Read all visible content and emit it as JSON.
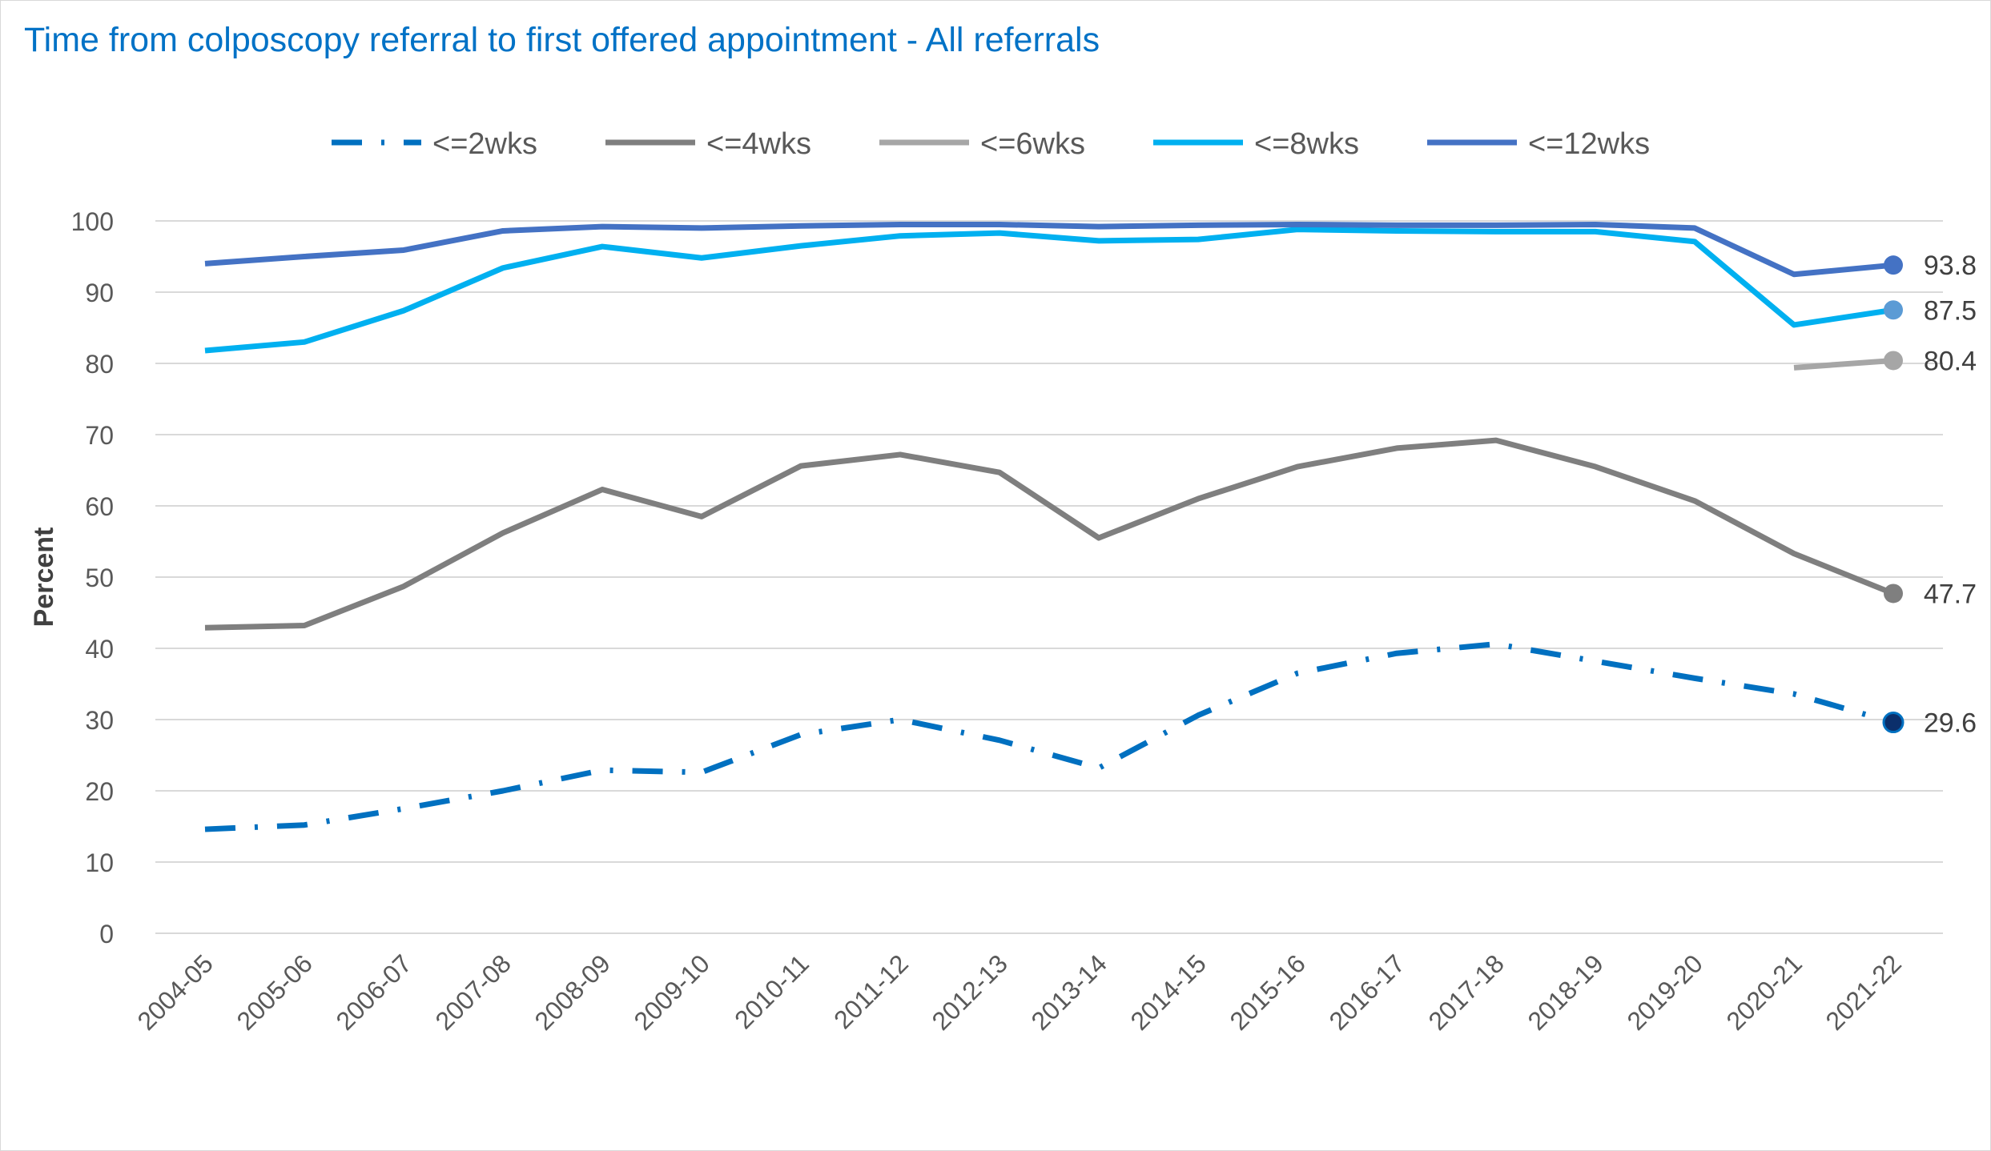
{
  "chart_data": {
    "type": "line",
    "title": "Time from colposcopy referral to first offered appointment - All referrals",
    "xlabel": "",
    "ylabel": "Percent",
    "ylim": [
      0,
      100
    ],
    "yticks": [
      0,
      10,
      20,
      30,
      40,
      50,
      60,
      70,
      80,
      90,
      100
    ],
    "grid": true,
    "legend_position": "top",
    "categories": [
      "2004-05",
      "2005-06",
      "2006-07",
      "2007-08",
      "2008-09",
      "2009-10",
      "2010-11",
      "2011-12",
      "2012-13",
      "2013-14",
      "2014-15",
      "2015-16",
      "2016-17",
      "2017-18",
      "2018-19",
      "2019-20",
      "2020-21",
      "2021-22"
    ],
    "series": [
      {
        "name": "<=2wks",
        "color": "#0070c0",
        "line_style": "dash-dot",
        "values": [
          14.6,
          15.2,
          17.5,
          20.0,
          22.9,
          22.6,
          27.9,
          30.0,
          27.1,
          23.2,
          30.6,
          36.5,
          39.3,
          40.6,
          38.2,
          35.8,
          33.6,
          29.6
        ],
        "end_label": "29.6",
        "marker_color": "#0b2f6b"
      },
      {
        "name": "<=4wks",
        "color": "#7f7f7f",
        "line_style": "solid",
        "values": [
          42.9,
          43.2,
          48.7,
          56.2,
          62.3,
          58.5,
          65.6,
          67.2,
          64.7,
          55.5,
          61.0,
          65.5,
          68.1,
          69.2,
          65.5,
          60.7,
          53.3,
          47.7
        ],
        "end_label": "47.7",
        "marker_color": "#7f7f7f"
      },
      {
        "name": "<=6wks",
        "color": "#a6a6a6",
        "line_style": "solid",
        "values": [
          null,
          null,
          null,
          null,
          null,
          null,
          null,
          null,
          null,
          null,
          null,
          null,
          null,
          null,
          null,
          null,
          79.4,
          80.4
        ],
        "end_label": "80.4",
        "marker_color": "#a6a6a6"
      },
      {
        "name": "<=8wks",
        "color": "#00b0f0",
        "line_style": "solid",
        "values": [
          81.8,
          83.0,
          87.4,
          93.4,
          96.4,
          94.8,
          96.5,
          97.9,
          98.3,
          97.2,
          97.4,
          98.8,
          98.6,
          98.5,
          98.5,
          97.1,
          85.4,
          87.5
        ],
        "end_label": "87.5",
        "marker_color": "#5b9bd5"
      },
      {
        "name": "<=12wks",
        "color": "#4472c4",
        "line_style": "solid",
        "values": [
          94.0,
          95.0,
          95.9,
          98.6,
          99.2,
          99.0,
          99.3,
          99.5,
          99.5,
          99.2,
          99.4,
          99.5,
          99.4,
          99.4,
          99.5,
          99.0,
          92.5,
          93.8
        ],
        "end_label": "93.8",
        "marker_color": "#4472c4"
      }
    ]
  }
}
